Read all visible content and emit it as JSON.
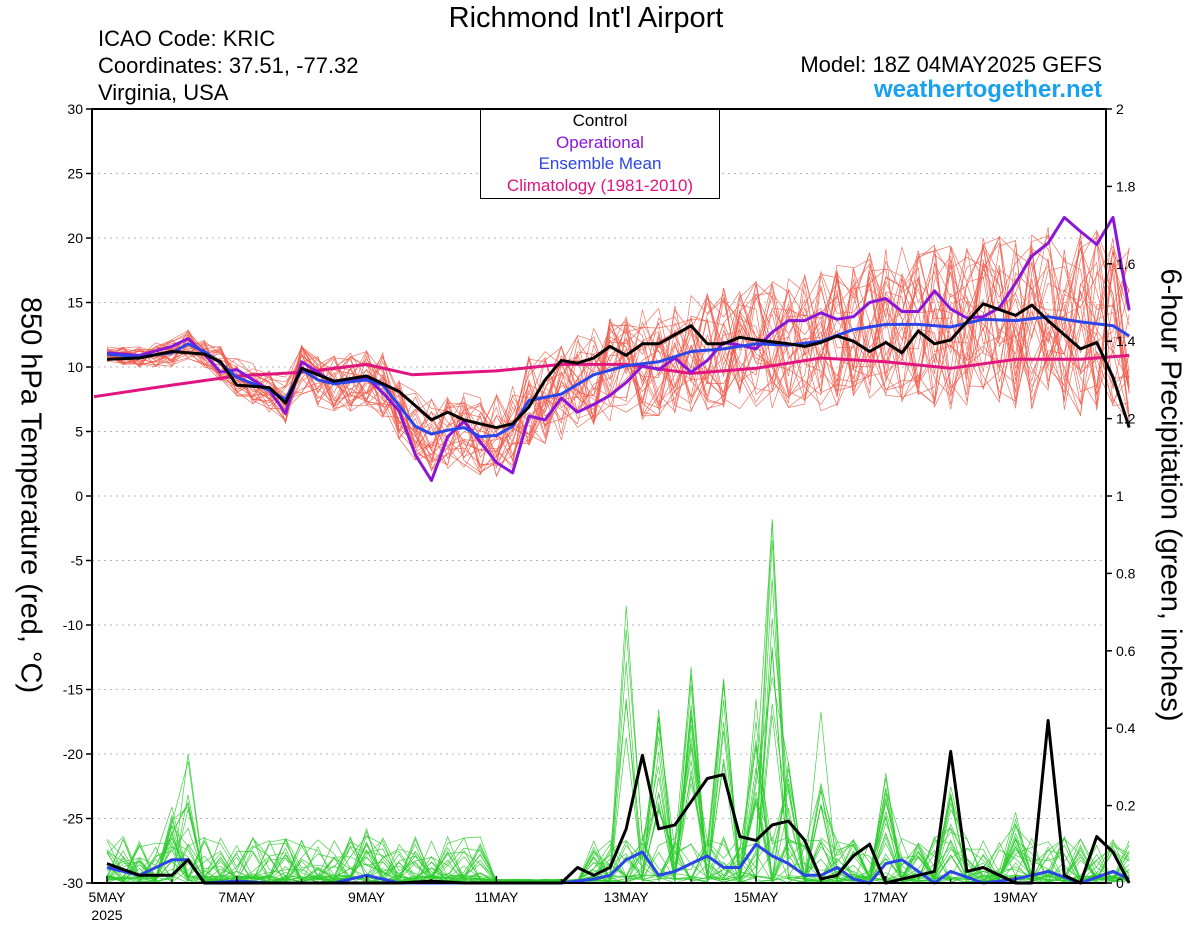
{
  "header": {
    "title": "Richmond Int'l Airport",
    "icao": "ICAO Code: KRIC",
    "coordinates": "Coordinates: 37.51, -77.32",
    "location": "Virginia, USA",
    "model": "Model: 18Z 04MAY2025 GEFS",
    "site": "weathertogether.net"
  },
  "legend": {
    "control": "Control",
    "operational": "Operational",
    "ensemble_mean": "Ensemble Mean",
    "climatology": "Climatology (1981-2010)"
  },
  "colors": {
    "control": "#000000",
    "operational": "#8a16d8",
    "ensemble_mean": "#2b45e8",
    "climatology": "#e0157f",
    "members_temp": "#f05a4a",
    "members_precip": "#2ecc2e",
    "site": "#1aa0f0"
  },
  "chart_data": {
    "type": "line",
    "ylabel": "850 hPa Temperature (red, °C)",
    "y2label": "6-hour Precipitation (green, inches)",
    "ylim": [
      -30,
      30
    ],
    "y2lim": [
      0,
      2
    ],
    "yticks": [
      30,
      25,
      20,
      15,
      10,
      5,
      0,
      -5,
      -10,
      -15,
      -20,
      -25,
      -30
    ],
    "y2ticks": [
      2,
      1.8,
      1.6,
      1.4,
      1.2,
      1,
      0.8,
      0.6,
      0.4,
      0.2,
      0
    ],
    "x_unit": "days since 5MAY 00Z",
    "xlim": [
      0,
      15.75
    ],
    "xticks": [
      {
        "day": 0,
        "label": "5MAY",
        "sub": "2025"
      },
      {
        "day": 2,
        "label": "7MAY"
      },
      {
        "day": 4,
        "label": "9MAY"
      },
      {
        "day": 6,
        "label": "11MAY"
      },
      {
        "day": 8,
        "label": "13MAY"
      },
      {
        "day": 10,
        "label": "15MAY"
      },
      {
        "day": 12,
        "label": "17MAY"
      },
      {
        "day": 14,
        "label": "19MAY"
      }
    ],
    "grid": true,
    "series": [
      {
        "name": "Climatology (1981-2010)",
        "axis": "left",
        "width": 3,
        "color": "#e0157f",
        "values": [
          [
            -0.2,
            7.7
          ],
          [
            1,
            8.6
          ],
          [
            2,
            9.3
          ],
          [
            3,
            9.6
          ],
          [
            4,
            10.2
          ],
          [
            4.7,
            9.4
          ],
          [
            6,
            9.7
          ],
          [
            7,
            10.2
          ],
          [
            8,
            10.2
          ],
          [
            9,
            9.5
          ],
          [
            10,
            9.9
          ],
          [
            11,
            10.7
          ],
          [
            12,
            10.4
          ],
          [
            13,
            9.9
          ],
          [
            14,
            10.6
          ],
          [
            15,
            10.6
          ],
          [
            15.75,
            10.9
          ]
        ]
      },
      {
        "name": "Operational",
        "axis": "left",
        "width": 3,
        "color": "#8a16d8",
        "values": [
          [
            0,
            11.1
          ],
          [
            0.5,
            10.9
          ],
          [
            1,
            11.6
          ],
          [
            1.25,
            12.2
          ],
          [
            1.5,
            11.0
          ],
          [
            1.75,
            9.6
          ],
          [
            2,
            9.8
          ],
          [
            2.5,
            8.2
          ],
          [
            2.75,
            6.4
          ],
          [
            3,
            10.4
          ],
          [
            3.25,
            9.6
          ],
          [
            3.5,
            8.7
          ],
          [
            4,
            9.2
          ],
          [
            4.25,
            8.0
          ],
          [
            4.5,
            6.6
          ],
          [
            4.75,
            3.2
          ],
          [
            5,
            1.2
          ],
          [
            5.25,
            4.6
          ],
          [
            5.5,
            5.8
          ],
          [
            5.75,
            4.2
          ],
          [
            6,
            2.6
          ],
          [
            6.25,
            1.8
          ],
          [
            6.5,
            6.2
          ],
          [
            6.75,
            5.9
          ],
          [
            7,
            7.6
          ],
          [
            7.25,
            6.5
          ],
          [
            7.5,
            7.1
          ],
          [
            7.75,
            7.8
          ],
          [
            8,
            8.8
          ],
          [
            8.25,
            10.1
          ],
          [
            8.5,
            9.8
          ],
          [
            8.75,
            10.7
          ],
          [
            9,
            9.6
          ],
          [
            9.25,
            10.5
          ],
          [
            9.5,
            11.9
          ],
          [
            9.75,
            11.7
          ],
          [
            10,
            11.4
          ],
          [
            10.25,
            12.7
          ],
          [
            10.5,
            13.6
          ],
          [
            10.75,
            13.6
          ],
          [
            11,
            14.2
          ],
          [
            11.25,
            13.7
          ],
          [
            11.5,
            13.9
          ],
          [
            11.75,
            15.0
          ],
          [
            12,
            15.3
          ],
          [
            12.25,
            14.3
          ],
          [
            12.5,
            14.3
          ],
          [
            12.75,
            15.9
          ],
          [
            13,
            14.5
          ],
          [
            13.25,
            13.8
          ],
          [
            13.5,
            13.9
          ],
          [
            13.75,
            14.6
          ],
          [
            14,
            16.5
          ],
          [
            14.25,
            18.6
          ],
          [
            14.5,
            19.6
          ],
          [
            14.75,
            21.6
          ],
          [
            15,
            20.5
          ],
          [
            15.25,
            19.5
          ],
          [
            15.5,
            21.6
          ],
          [
            15.75,
            14.4
          ]
        ]
      },
      {
        "name": "Ensemble Mean",
        "axis": "left",
        "width": 3,
        "color": "#2b45e8",
        "values": [
          [
            0,
            11.0
          ],
          [
            0.5,
            10.8
          ],
          [
            1,
            11.1
          ],
          [
            1.25,
            11.8
          ],
          [
            1.5,
            11.2
          ],
          [
            1.75,
            10.3
          ],
          [
            2,
            9.2
          ],
          [
            2.5,
            8.2
          ],
          [
            2.75,
            7.5
          ],
          [
            3,
            9.8
          ],
          [
            3.25,
            9.0
          ],
          [
            3.5,
            8.7
          ],
          [
            4,
            9.0
          ],
          [
            4.25,
            8.6
          ],
          [
            4.5,
            7.0
          ],
          [
            4.75,
            5.4
          ],
          [
            5,
            4.8
          ],
          [
            5.25,
            5.1
          ],
          [
            5.5,
            5.3
          ],
          [
            5.75,
            4.6
          ],
          [
            6,
            4.7
          ],
          [
            6.25,
            5.4
          ],
          [
            6.5,
            7.4
          ],
          [
            7,
            7.9
          ],
          [
            7.5,
            9.4
          ],
          [
            8,
            10.1
          ],
          [
            8.5,
            10.4
          ],
          [
            9,
            11.2
          ],
          [
            9.5,
            11.4
          ],
          [
            10,
            11.8
          ],
          [
            10.5,
            11.7
          ],
          [
            11,
            12.0
          ],
          [
            11.5,
            12.9
          ],
          [
            12,
            13.3
          ],
          [
            12.5,
            13.3
          ],
          [
            13,
            13.1
          ],
          [
            13.5,
            13.7
          ],
          [
            14,
            13.6
          ],
          [
            14.5,
            13.9
          ],
          [
            15,
            13.5
          ],
          [
            15.5,
            13.2
          ],
          [
            15.75,
            12.4
          ]
        ]
      },
      {
        "name": "Control",
        "axis": "left",
        "width": 3,
        "color": "#000000",
        "values": [
          [
            0,
            10.6
          ],
          [
            0.5,
            10.7
          ],
          [
            1,
            11.2
          ],
          [
            1.5,
            11.0
          ],
          [
            1.75,
            10.4
          ],
          [
            2,
            8.6
          ],
          [
            2.5,
            8.4
          ],
          [
            2.75,
            7.2
          ],
          [
            3,
            9.9
          ],
          [
            3.5,
            8.9
          ],
          [
            4,
            9.3
          ],
          [
            4.5,
            8.1
          ],
          [
            5,
            5.9
          ],
          [
            5.25,
            6.5
          ],
          [
            5.5,
            5.9
          ],
          [
            5.75,
            5.6
          ],
          [
            6,
            5.3
          ],
          [
            6.25,
            5.6
          ],
          [
            6.5,
            6.9
          ],
          [
            6.75,
            9.0
          ],
          [
            7,
            10.5
          ],
          [
            7.25,
            10.3
          ],
          [
            7.5,
            10.7
          ],
          [
            7.75,
            11.6
          ],
          [
            8,
            10.9
          ],
          [
            8.25,
            11.8
          ],
          [
            8.5,
            11.8
          ],
          [
            9,
            13.2
          ],
          [
            9.25,
            11.8
          ],
          [
            9.5,
            11.8
          ],
          [
            9.75,
            12.3
          ],
          [
            10,
            12.1
          ],
          [
            10.5,
            11.8
          ],
          [
            10.75,
            11.6
          ],
          [
            11,
            11.9
          ],
          [
            11.25,
            12.4
          ],
          [
            11.5,
            12.0
          ],
          [
            11.75,
            11.2
          ],
          [
            12,
            11.9
          ],
          [
            12.25,
            11.1
          ],
          [
            12.5,
            12.8
          ],
          [
            12.75,
            11.8
          ],
          [
            13,
            12.1
          ],
          [
            13.5,
            14.9
          ],
          [
            14,
            14.0
          ],
          [
            14.25,
            14.8
          ],
          [
            14.5,
            13.6
          ],
          [
            15,
            11.4
          ],
          [
            15.25,
            11.9
          ],
          [
            15.5,
            9.2
          ],
          [
            15.75,
            5.3
          ]
        ]
      },
      {
        "name": "Ensemble Mean",
        "axis": "right",
        "width": 3,
        "color": "#2b45e8",
        "values": [
          [
            0,
            0.04
          ],
          [
            0.5,
            0.02
          ],
          [
            1,
            0.06
          ],
          [
            1.25,
            0.06
          ],
          [
            1.5,
            0.0
          ],
          [
            2,
            0.005
          ],
          [
            2.5,
            0.0
          ],
          [
            3,
            0.0
          ],
          [
            3.5,
            0.0
          ],
          [
            4,
            0.02
          ],
          [
            4.5,
            0.0
          ],
          [
            5,
            0.0
          ],
          [
            5.5,
            0.0
          ],
          [
            6,
            0.0
          ],
          [
            6.5,
            0.0
          ],
          [
            7,
            0.0
          ],
          [
            7.5,
            0.01
          ],
          [
            7.75,
            0.02
          ],
          [
            8,
            0.06
          ],
          [
            8.25,
            0.08
          ],
          [
            8.5,
            0.02
          ],
          [
            8.75,
            0.03
          ],
          [
            9,
            0.05
          ],
          [
            9.25,
            0.07
          ],
          [
            9.5,
            0.04
          ],
          [
            9.75,
            0.04
          ],
          [
            10,
            0.1
          ],
          [
            10.25,
            0.07
          ],
          [
            10.5,
            0.05
          ],
          [
            10.75,
            0.02
          ],
          [
            11,
            0.02
          ],
          [
            11.25,
            0.04
          ],
          [
            11.5,
            0.01
          ],
          [
            11.75,
            0.0
          ],
          [
            12,
            0.05
          ],
          [
            12.25,
            0.06
          ],
          [
            12.5,
            0.03
          ],
          [
            12.75,
            0.0
          ],
          [
            13,
            0.03
          ],
          [
            13.5,
            0.0
          ],
          [
            14,
            0.01
          ],
          [
            14.5,
            0.03
          ],
          [
            15,
            0.0
          ],
          [
            15.5,
            0.03
          ],
          [
            15.75,
            0.01
          ]
        ]
      },
      {
        "name": "Control",
        "axis": "right",
        "width": 3,
        "color": "#000000",
        "values": [
          [
            0,
            0.05
          ],
          [
            0.5,
            0.02
          ],
          [
            1,
            0.02
          ],
          [
            1.25,
            0.06
          ],
          [
            1.5,
            0.0
          ],
          [
            2,
            0.0
          ],
          [
            2.5,
            0.0
          ],
          [
            3,
            0.0
          ],
          [
            3.5,
            0.0
          ],
          [
            4,
            0.0
          ],
          [
            4.5,
            0.0
          ],
          [
            5,
            0.005
          ],
          [
            5.5,
            0.0
          ],
          [
            6,
            0.0
          ],
          [
            6.5,
            0.0
          ],
          [
            7,
            0.0
          ],
          [
            7.25,
            0.04
          ],
          [
            7.5,
            0.02
          ],
          [
            7.75,
            0.04
          ],
          [
            8,
            0.14
          ],
          [
            8.25,
            0.33
          ],
          [
            8.5,
            0.14
          ],
          [
            8.75,
            0.15
          ],
          [
            9,
            0.21
          ],
          [
            9.25,
            0.27
          ],
          [
            9.5,
            0.28
          ],
          [
            9.75,
            0.12
          ],
          [
            10,
            0.11
          ],
          [
            10.25,
            0.15
          ],
          [
            10.5,
            0.16
          ],
          [
            10.75,
            0.11
          ],
          [
            11,
            0.01
          ],
          [
            11.25,
            0.02
          ],
          [
            11.5,
            0.07
          ],
          [
            11.75,
            0.1
          ],
          [
            12,
            0.0
          ],
          [
            12.25,
            0.01
          ],
          [
            12.5,
            0.02
          ],
          [
            12.75,
            0.03
          ],
          [
            13,
            0.34
          ],
          [
            13.25,
            0.03
          ],
          [
            13.5,
            0.04
          ],
          [
            14,
            0.0
          ],
          [
            14.25,
            0.0
          ],
          [
            14.5,
            0.42
          ],
          [
            14.75,
            0.02
          ],
          [
            15,
            0.0
          ],
          [
            15.25,
            0.12
          ],
          [
            15.5,
            0.08
          ],
          [
            15.75,
            0.0
          ]
        ]
      }
    ]
  }
}
